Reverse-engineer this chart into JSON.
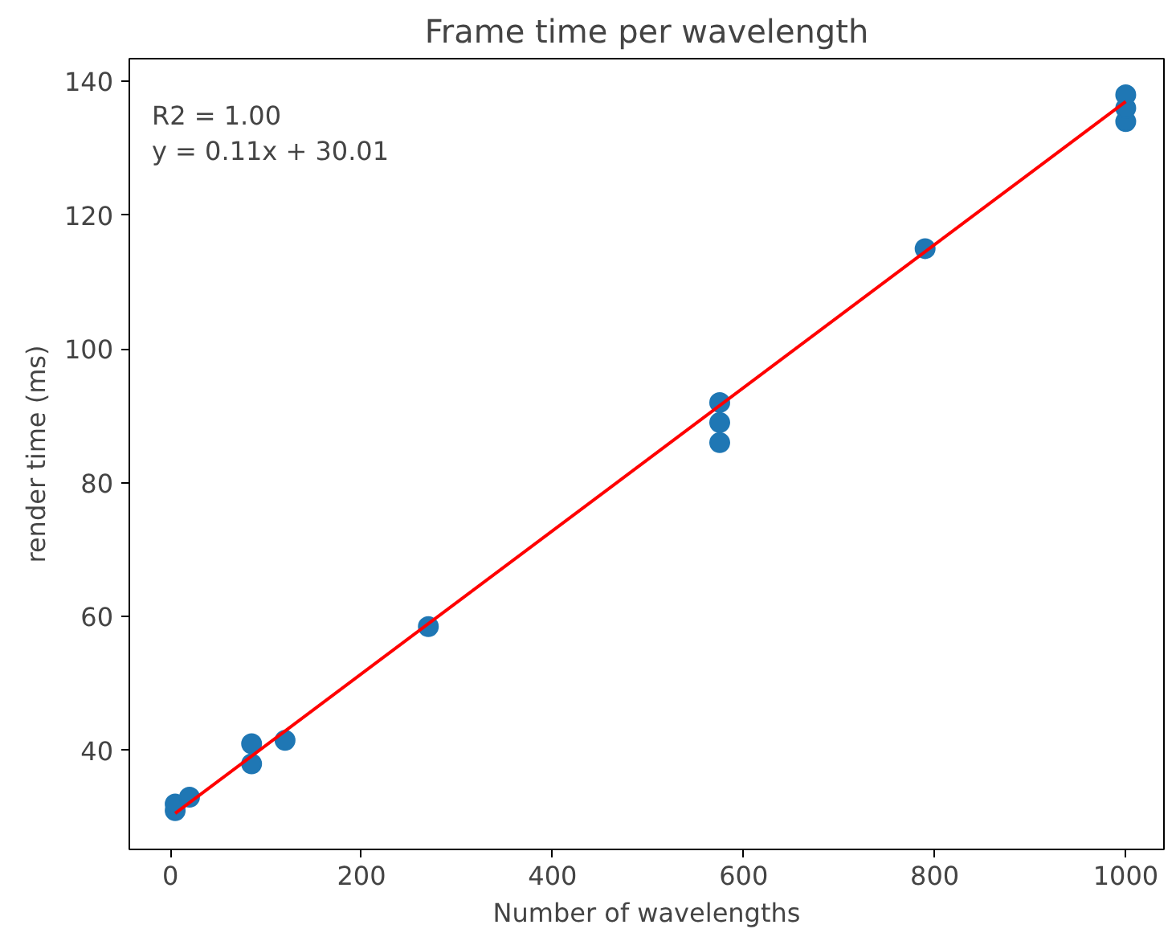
{
  "chart_data": {
    "type": "scatter",
    "title": "Frame time per wavelength",
    "xlabel": "Number of wavelengths",
    "ylabel": "render time (ms)",
    "xlim": [
      -43,
      1040
    ],
    "ylim": [
      25.2,
      143.4
    ],
    "xticks": [
      0,
      200,
      400,
      600,
      800,
      1000
    ],
    "yticks": [
      40,
      60,
      80,
      100,
      120,
      140
    ],
    "grid": false,
    "annotations": [
      "R2 = 1.00",
      "y = 0.11x + 30.01"
    ],
    "series": [
      {
        "color": "#1f77b4",
        "marker": "circle",
        "x": [
          5,
          5,
          20,
          85,
          85,
          120,
          270,
          575,
          575,
          575,
          790,
          1000,
          1000,
          1000
        ],
        "values": [
          31,
          32,
          33,
          38,
          41,
          41.5,
          58.5,
          86,
          89,
          92,
          115,
          134,
          136,
          138
        ]
      },
      {
        "type": "line",
        "color": "#ff0000",
        "line_style": "solid",
        "x": [
          5,
          1000
        ],
        "values": [
          30.6,
          137
        ]
      }
    ]
  }
}
